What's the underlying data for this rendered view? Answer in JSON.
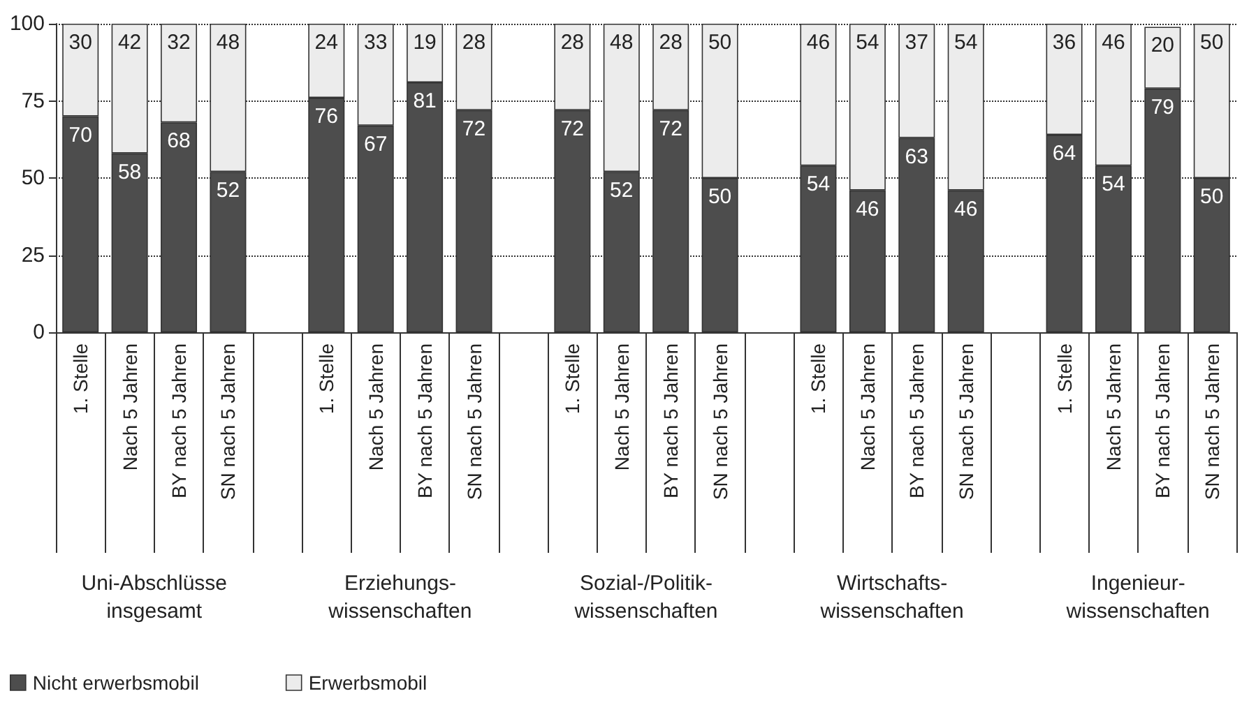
{
  "chart_data": {
    "type": "bar",
    "stacked": true,
    "categories": [
      "1. Stelle",
      "Nach 5 Jahren",
      "BY nach 5 Jahren",
      "SN nach 5 Jahren",
      null,
      "1. Stelle",
      "Nach 5 Jahren",
      "BY nach 5 Jahren",
      "SN nach 5 Jahren",
      null,
      "1. Stelle",
      "Nach 5 Jahren",
      "BY nach 5 Jahren",
      "SN nach 5 Jahren",
      null,
      "1. Stelle",
      "Nach 5 Jahren",
      "BY nach 5 Jahren",
      "SN nach 5 Jahren",
      null,
      "1. Stelle",
      "Nach 5 Jahren",
      "BY nach 5 Jahren",
      "SN nach 5 Jahren"
    ],
    "series": [
      {
        "name": "Nicht erwerbsmobil",
        "color": "#4d4d4d",
        "values": [
          70,
          58,
          68,
          52,
          null,
          76,
          67,
          81,
          72,
          null,
          72,
          52,
          72,
          50,
          null,
          54,
          46,
          63,
          46,
          null,
          64,
          54,
          79,
          50
        ]
      },
      {
        "name": "Erwerbsmobil",
        "color": "#ececec",
        "values": [
          30,
          42,
          32,
          48,
          null,
          24,
          33,
          19,
          28,
          null,
          28,
          48,
          28,
          50,
          null,
          46,
          54,
          37,
          54,
          null,
          36,
          46,
          20,
          50
        ]
      }
    ],
    "ylim": [
      0,
      100
    ],
    "yticks": [
      0,
      25,
      50,
      75,
      100
    ],
    "grid": "y",
    "legend": "bottom left",
    "data_labels": true,
    "annotations": [
      "Uni-Abschlüsse\ninsgesamt",
      "Erziehungs-\nwissenschaften",
      "Sozial-/Politik-\nwissenschaften",
      "Wirtschafts-\nwissenschaften",
      "Ingenieur-\nwissenschaften"
    ]
  }
}
